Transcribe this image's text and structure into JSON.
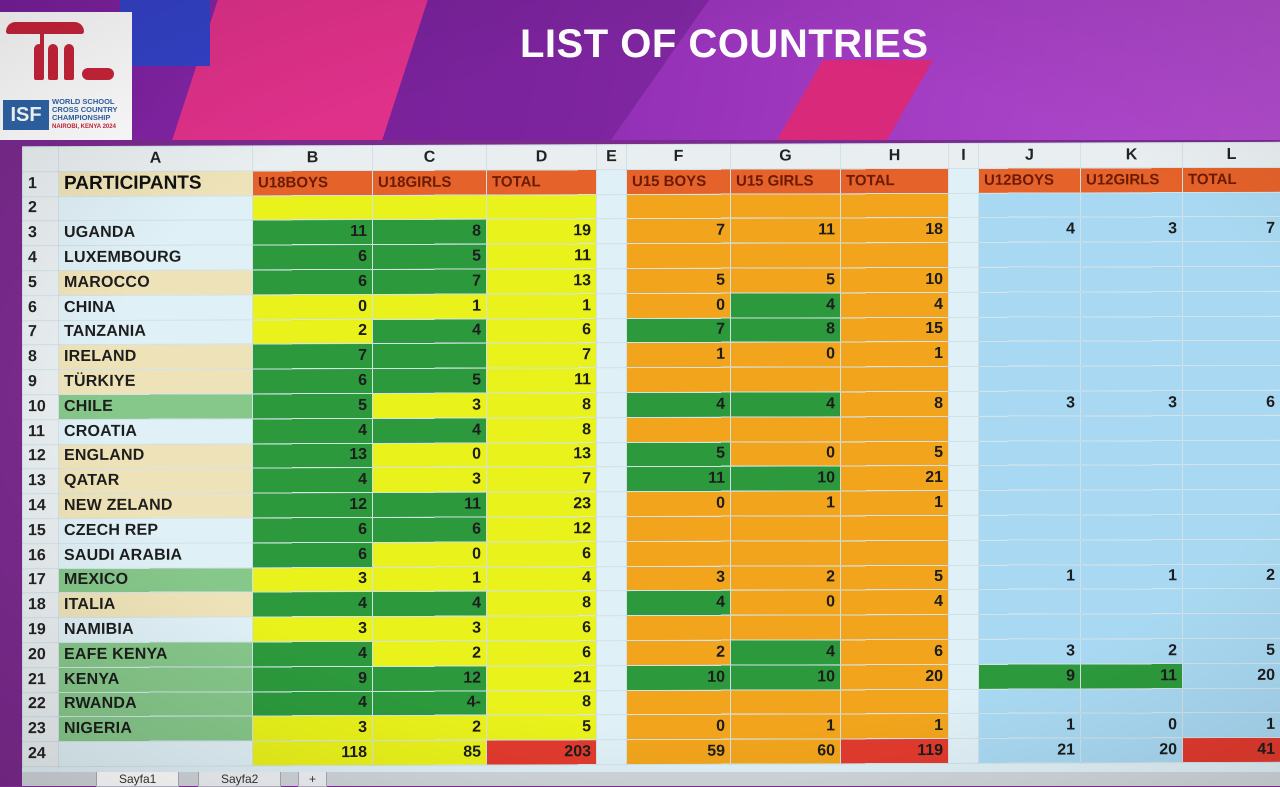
{
  "title": "LIST OF COUNTRIES",
  "logo": {
    "abbr": "ISF",
    "lines": [
      "WORLD SCHOOL",
      "CROSS COUNTRY",
      "CHAMPIONSHIP"
    ],
    "place": "NAIROBI, KENYA 2024"
  },
  "columns": [
    "A",
    "B",
    "C",
    "D",
    "E",
    "F",
    "G",
    "H",
    "I",
    "J",
    "K",
    "L"
  ],
  "header": {
    "rownum": "1",
    "participants": "PARTICIPANTS",
    "b": "U18BOYS",
    "c": "U18GIRLS",
    "d": "TOTAL",
    "f": "U15 BOYS",
    "g": "U15 GIRLS",
    "h": "TOTAL",
    "j": "U12BOYS",
    "k": "U12GIRLS",
    "l": "TOTAL"
  },
  "rows": [
    {
      "n": "2",
      "name": "",
      "b": "",
      "c": "",
      "d": "",
      "f": "",
      "g": "",
      "h": "",
      "j": "",
      "k": "",
      "l": ""
    },
    {
      "n": "3",
      "name": "UGANDA",
      "b": "11",
      "c": "8",
      "d": "19",
      "f": "7",
      "g": "11",
      "h": "18",
      "j": "4",
      "k": "3",
      "l": "7"
    },
    {
      "n": "4",
      "name": "LUXEMBOURG",
      "b": "6",
      "c": "5",
      "d": "11",
      "f": "",
      "g": "",
      "h": "",
      "j": "",
      "k": "",
      "l": ""
    },
    {
      "n": "5",
      "name": "MAROCCO",
      "b": "6",
      "c": "7",
      "d": "13",
      "f": "5",
      "g": "5",
      "h": "10",
      "j": "",
      "k": "",
      "l": ""
    },
    {
      "n": "6",
      "name": "CHINA",
      "b": "0",
      "c": "1",
      "d": "1",
      "f": "0",
      "g": "4",
      "h": "4",
      "j": "",
      "k": "",
      "l": ""
    },
    {
      "n": "7",
      "name": "TANZANIA",
      "b": "2",
      "c": "4",
      "d": "6",
      "f": "7",
      "g": "8",
      "h": "15",
      "j": "",
      "k": "",
      "l": ""
    },
    {
      "n": "8",
      "name": "IRELAND",
      "b": "7",
      "c": "",
      "d": "7",
      "f": "1",
      "g": "0",
      "h": "1",
      "j": "",
      "k": "",
      "l": ""
    },
    {
      "n": "9",
      "name": "TÜRKIYE",
      "b": "6",
      "c": "5",
      "d": "11",
      "f": "",
      "g": "",
      "h": "",
      "j": "",
      "k": "",
      "l": ""
    },
    {
      "n": "10",
      "name": "CHILE",
      "b": "5",
      "c": "3",
      "d": "8",
      "f": "4",
      "g": "4",
      "h": "8",
      "j": "3",
      "k": "3",
      "l": "6"
    },
    {
      "n": "11",
      "name": "CROATIA",
      "b": "4",
      "c": "4",
      "d": "8",
      "f": "",
      "g": "",
      "h": "",
      "j": "",
      "k": "",
      "l": ""
    },
    {
      "n": "12",
      "name": "ENGLAND",
      "b": "13",
      "c": "0",
      "d": "13",
      "f": "5",
      "g": "0",
      "h": "5",
      "j": "",
      "k": "",
      "l": ""
    },
    {
      "n": "13",
      "name": "QATAR",
      "b": "4",
      "c": "3",
      "d": "7",
      "f": "11",
      "g": "10",
      "h": "21",
      "j": "",
      "k": "",
      "l": ""
    },
    {
      "n": "14",
      "name": "NEW ZELAND",
      "b": "12",
      "c": "11",
      "d": "23",
      "f": "0",
      "g": "1",
      "h": "1",
      "j": "",
      "k": "",
      "l": ""
    },
    {
      "n": "15",
      "name": "CZECH REP",
      "b": "6",
      "c": "6",
      "d": "12",
      "f": "",
      "g": "",
      "h": "",
      "j": "",
      "k": "",
      "l": ""
    },
    {
      "n": "16",
      "name": "SAUDI ARABIA",
      "b": "6",
      "c": "0",
      "d": "6",
      "f": "",
      "g": "",
      "h": "",
      "j": "",
      "k": "",
      "l": ""
    },
    {
      "n": "17",
      "name": "MEXICO",
      "b": "3",
      "c": "1",
      "d": "4",
      "f": "3",
      "g": "2",
      "h": "5",
      "j": "1",
      "k": "1",
      "l": "2"
    },
    {
      "n": "18",
      "name": "ITALIA",
      "b": "4",
      "c": "4",
      "d": "8",
      "f": "4",
      "g": "0",
      "h": "4",
      "j": "",
      "k": "",
      "l": ""
    },
    {
      "n": "19",
      "name": "NAMIBIA",
      "b": "3",
      "c": "3",
      "d": "6",
      "f": "",
      "g": "",
      "h": "",
      "j": "",
      "k": "",
      "l": ""
    },
    {
      "n": "20",
      "name": "EAFE KENYA",
      "b": "4",
      "c": "2",
      "d": "6",
      "f": "2",
      "g": "4",
      "h": "6",
      "j": "3",
      "k": "2",
      "l": "5"
    },
    {
      "n": "21",
      "name": "KENYA",
      "b": "9",
      "c": "12",
      "d": "21",
      "f": "10",
      "g": "10",
      "h": "20",
      "j": "9",
      "k": "11",
      "l": "20"
    },
    {
      "n": "22",
      "name": "RWANDA",
      "b": "4",
      "c": "4-",
      "d": "8",
      "f": "",
      "g": "",
      "h": "",
      "j": "",
      "k": "",
      "l": ""
    },
    {
      "n": "23",
      "name": "NIGERIA",
      "b": "3",
      "c": "2",
      "d": "5",
      "f": "0",
      "g": "1",
      "h": "1",
      "j": "1",
      "k": "0",
      "l": "1"
    },
    {
      "n": "24",
      "name": "",
      "b": "118",
      "c": "85",
      "d": "203",
      "f": "59",
      "g": "60",
      "h": "119",
      "j": "21",
      "k": "20",
      "l": "41"
    }
  ],
  "tabs": [
    "Sayfa1",
    "Sayfa2",
    "+"
  ]
}
